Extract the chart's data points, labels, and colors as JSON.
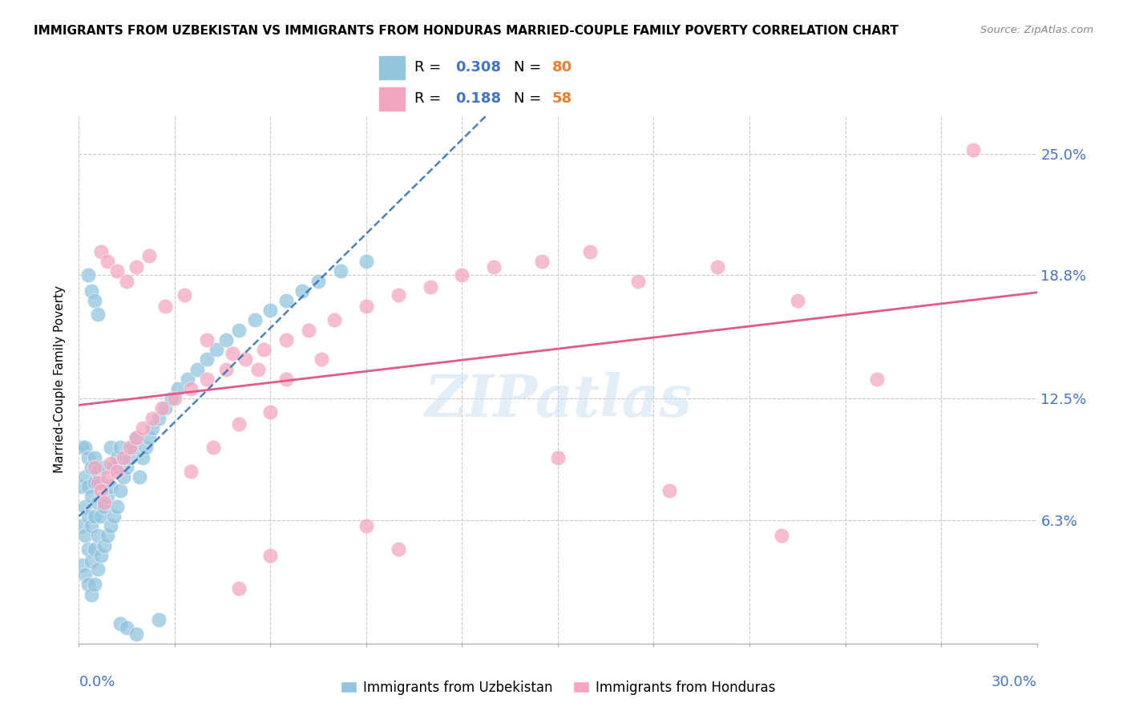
{
  "title": "IMMIGRANTS FROM UZBEKISTAN VS IMMIGRANTS FROM HONDURAS MARRIED-COUPLE FAMILY POVERTY CORRELATION CHART",
  "source": "Source: ZipAtlas.com",
  "ylabel": "Married-Couple Family Poverty",
  "yticks": [
    0.0,
    0.063,
    0.125,
    0.188,
    0.25
  ],
  "ytick_labels": [
    "",
    "6.3%",
    "12.5%",
    "18.8%",
    "25.0%"
  ],
  "xlim": [
    0.0,
    0.3
  ],
  "ylim": [
    0.0,
    0.27
  ],
  "uzbekistan_color": "#92c5de",
  "honduras_color": "#f4a6c0",
  "uzbekistan_R": "0.308",
  "uzbekistan_N": "80",
  "honduras_R": "0.188",
  "honduras_N": "58",
  "watermark": "ZIPatlas",
  "r_color": "#4472c4",
  "n_color": "#ed7d31",
  "uzbekistan_line_color": "#2b6cb0",
  "honduras_line_color": "#e05a8a",
  "tick_color": "#4472c4",
  "grid_color": "#c8c8c8",
  "uzbekistan_x": [
    0.001,
    0.001,
    0.001,
    0.001,
    0.002,
    0.002,
    0.002,
    0.002,
    0.002,
    0.003,
    0.003,
    0.003,
    0.003,
    0.003,
    0.004,
    0.004,
    0.004,
    0.004,
    0.004,
    0.005,
    0.005,
    0.005,
    0.005,
    0.005,
    0.006,
    0.006,
    0.006,
    0.006,
    0.007,
    0.007,
    0.007,
    0.008,
    0.008,
    0.008,
    0.009,
    0.009,
    0.01,
    0.01,
    0.01,
    0.011,
    0.011,
    0.012,
    0.012,
    0.013,
    0.013,
    0.014,
    0.015,
    0.016,
    0.017,
    0.018,
    0.019,
    0.02,
    0.021,
    0.022,
    0.023,
    0.025,
    0.027,
    0.029,
    0.031,
    0.034,
    0.037,
    0.04,
    0.043,
    0.046,
    0.05,
    0.055,
    0.06,
    0.065,
    0.07,
    0.075,
    0.082,
    0.09,
    0.003,
    0.004,
    0.005,
    0.006,
    0.013,
    0.015,
    0.018,
    0.025
  ],
  "uzbekistan_y": [
    0.04,
    0.06,
    0.08,
    0.1,
    0.035,
    0.055,
    0.07,
    0.085,
    0.1,
    0.03,
    0.048,
    0.065,
    0.08,
    0.095,
    0.025,
    0.042,
    0.06,
    0.075,
    0.09,
    0.03,
    0.048,
    0.065,
    0.082,
    0.095,
    0.038,
    0.055,
    0.072,
    0.088,
    0.045,
    0.065,
    0.082,
    0.05,
    0.07,
    0.09,
    0.055,
    0.075,
    0.06,
    0.08,
    0.1,
    0.065,
    0.09,
    0.07,
    0.095,
    0.078,
    0.1,
    0.085,
    0.09,
    0.095,
    0.1,
    0.105,
    0.085,
    0.095,
    0.1,
    0.105,
    0.11,
    0.115,
    0.12,
    0.125,
    0.13,
    0.135,
    0.14,
    0.145,
    0.15,
    0.155,
    0.16,
    0.165,
    0.17,
    0.175,
    0.18,
    0.185,
    0.19,
    0.195,
    0.188,
    0.18,
    0.175,
    0.168,
    0.01,
    0.008,
    0.005,
    0.012
  ],
  "honduras_x": [
    0.005,
    0.006,
    0.007,
    0.008,
    0.009,
    0.01,
    0.012,
    0.014,
    0.016,
    0.018,
    0.02,
    0.023,
    0.026,
    0.03,
    0.035,
    0.04,
    0.046,
    0.052,
    0.058,
    0.065,
    0.072,
    0.08,
    0.09,
    0.1,
    0.11,
    0.12,
    0.13,
    0.145,
    0.16,
    0.175,
    0.2,
    0.225,
    0.25,
    0.007,
    0.009,
    0.012,
    0.015,
    0.018,
    0.022,
    0.027,
    0.033,
    0.04,
    0.048,
    0.056,
    0.065,
    0.076,
    0.035,
    0.042,
    0.05,
    0.06,
    0.15,
    0.185,
    0.22,
    0.05,
    0.06,
    0.09,
    0.1,
    0.28
  ],
  "honduras_y": [
    0.09,
    0.082,
    0.078,
    0.072,
    0.085,
    0.092,
    0.088,
    0.095,
    0.1,
    0.105,
    0.11,
    0.115,
    0.12,
    0.125,
    0.13,
    0.135,
    0.14,
    0.145,
    0.15,
    0.155,
    0.16,
    0.165,
    0.172,
    0.178,
    0.182,
    0.188,
    0.192,
    0.195,
    0.2,
    0.185,
    0.192,
    0.175,
    0.135,
    0.2,
    0.195,
    0.19,
    0.185,
    0.192,
    0.198,
    0.172,
    0.178,
    0.155,
    0.148,
    0.14,
    0.135,
    0.145,
    0.088,
    0.1,
    0.112,
    0.118,
    0.095,
    0.078,
    0.055,
    0.028,
    0.045,
    0.06,
    0.048,
    0.252
  ]
}
